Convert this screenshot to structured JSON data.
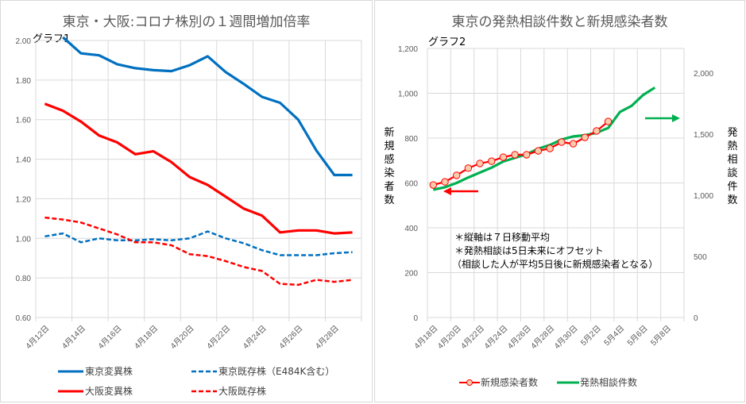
{
  "chart_data": [
    {
      "type": "line",
      "title": "東京・大阪:コロナ株別の１週間増加倍率",
      "subtitle": "グラフ1",
      "xlabel": "",
      "ylabel": "",
      "ylim": [
        0.6,
        2.0
      ],
      "yticks": [
        "0.60",
        "0.80",
        "1.00",
        "1.20",
        "1.40",
        "1.60",
        "1.80",
        "2.00"
      ],
      "grid": true,
      "legend": "bottom",
      "categories": [
        "4月12日",
        "4月13日",
        "4月14日",
        "4月15日",
        "4月16日",
        "4月17日",
        "4月18日",
        "4月19日",
        "4月20日",
        "4月21日",
        "4月22日",
        "4月23日",
        "4月24日",
        "4月25日",
        "4月26日",
        "4月27日",
        "4月28日",
        "4月29日"
      ],
      "xtick_labels": [
        "4月12日",
        "4月14日",
        "4月16日",
        "4月18日",
        "4月20日",
        "4月22日",
        "4月24日",
        "4月26日",
        "4月28日"
      ],
      "series": [
        {
          "name": "東京変異株",
          "color": "#0070c0",
          "style": "solid",
          "values": [
            null,
            2.05,
            1.935,
            1.925,
            1.88,
            1.86,
            1.85,
            1.845,
            1.875,
            1.92,
            1.84,
            1.78,
            1.715,
            1.685,
            1.6,
            1.445,
            1.32,
            1.32
          ]
        },
        {
          "name": "東京既存株（E484K含む）",
          "color": "#0070c0",
          "style": "dashed",
          "values": [
            1.01,
            1.025,
            0.98,
            1.0,
            0.99,
            0.99,
            0.995,
            0.99,
            1.0,
            1.035,
            1.0,
            0.975,
            0.94,
            0.915,
            0.915,
            0.915,
            0.925,
            0.93
          ]
        },
        {
          "name": "大阪変異株",
          "color": "#ff0000",
          "style": "solid",
          "values": [
            1.68,
            1.645,
            1.59,
            1.52,
            1.485,
            1.425,
            1.44,
            1.385,
            1.31,
            1.27,
            1.21,
            1.15,
            1.115,
            1.03,
            1.04,
            1.04,
            1.025,
            1.03
          ]
        },
        {
          "name": "大阪既存株",
          "color": "#ff0000",
          "style": "dashed",
          "values": [
            1.105,
            1.095,
            1.08,
            1.05,
            1.02,
            0.98,
            0.98,
            0.965,
            0.92,
            0.91,
            0.885,
            0.855,
            0.835,
            0.77,
            0.765,
            0.79,
            0.78,
            0.79
          ]
        }
      ]
    },
    {
      "type": "line",
      "title": "東京の発熱相談件数と新規感染者数",
      "subtitle": "グラフ2",
      "xlabel": "",
      "ylabel": "新規感染者数",
      "y2label": "発熱相談件数",
      "ylim": [
        0,
        1200
      ],
      "y2lim": [
        0,
        2200
      ],
      "yticks": [
        "0",
        "200",
        "400",
        "600",
        "800",
        "1,000",
        "1,200"
      ],
      "y2ticks": [
        "0",
        "500",
        "1,000",
        "1,500",
        "2,000"
      ],
      "grid": true,
      "legend": "bottom",
      "categories": [
        "4月18日",
        "4月19日",
        "4月20日",
        "4月21日",
        "4月22日",
        "4月23日",
        "4月24日",
        "4月25日",
        "4月26日",
        "4月27日",
        "4月28日",
        "4月29日",
        "4月30日",
        "5月1日",
        "5月2日",
        "5月3日",
        "5月4日",
        "5月5日",
        "5月6日",
        "5月7日",
        "5月8日",
        "5月9日"
      ],
      "xtick_labels": [
        "4月18日",
        "4月20日",
        "4月22日",
        "4月24日",
        "4月26日",
        "4月28日",
        "4月30日",
        "5月2日",
        "5月4日",
        "5月6日",
        "5月8日"
      ],
      "series": [
        {
          "name": "新規感染者数",
          "axis": "left",
          "color": "#ff0000",
          "marker": "circle",
          "marker_fill": "#f8cbad",
          "values": [
            591,
            605,
            634,
            666,
            687,
            697,
            715,
            726,
            726,
            743,
            754,
            782,
            775,
            803,
            832,
            874,
            null,
            null,
            null,
            null,
            null,
            null
          ]
        },
        {
          "name": "発熱相談件数",
          "axis": "right",
          "color": "#00b050",
          "marker": "none",
          "values": [
            1045,
            1065,
            1100,
            1145,
            1185,
            1225,
            1275,
            1305,
            1335,
            1380,
            1410,
            1455,
            1480,
            1490,
            1510,
            1550,
            1680,
            1730,
            1820,
            1880,
            null,
            null
          ]
        }
      ],
      "annotations": [
        "＊縦軸は７日移動平均",
        "＊発熱相談は5日未来にオフセット",
        "（相談した人が平均5日後に新規感染者となる）"
      ]
    }
  ]
}
